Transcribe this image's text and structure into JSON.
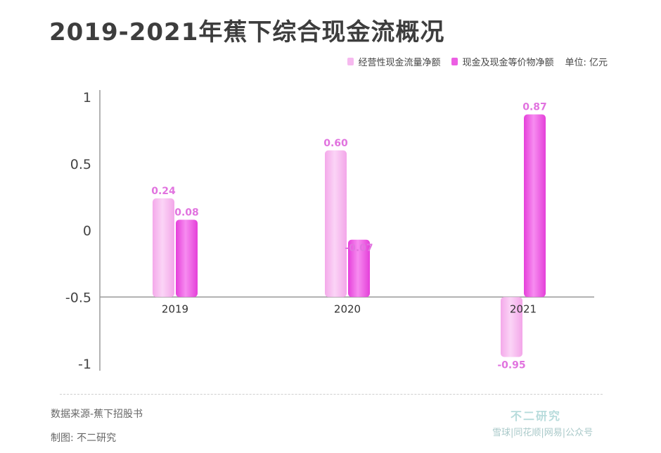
{
  "title": "2019-2021年蕉下综合现金流概况",
  "unit": "单位: 亿元",
  "source": "数据来源-蕉下招股书",
  "maker": "制图: 不二研究",
  "brand": "不二研究",
  "brand_sub": "雪球|同花顺|网易|公众号",
  "colors": {
    "series1": "#f6b9ef",
    "series2": "#ec5fe3",
    "label": "#e173df"
  },
  "chart_data": {
    "type": "bar",
    "categories": [
      "2019",
      "2020",
      "2021"
    ],
    "series": [
      {
        "name": "经营性现金流量净额",
        "values": [
          0.24,
          0.6,
          -0.95
        ],
        "labels": [
          "0.24",
          "0.60",
          "-0.95"
        ]
      },
      {
        "name": "现金及现金等价物净额",
        "values": [
          0.08,
          -0.07,
          0.87
        ],
        "labels": [
          "0.08",
          "-0.07",
          "0.87"
        ]
      }
    ],
    "yticks": [
      "1",
      "0.5",
      "0",
      "-0.5",
      "-1"
    ],
    "ylim": [
      -1,
      1
    ],
    "legend": "top-right",
    "grid": false
  }
}
